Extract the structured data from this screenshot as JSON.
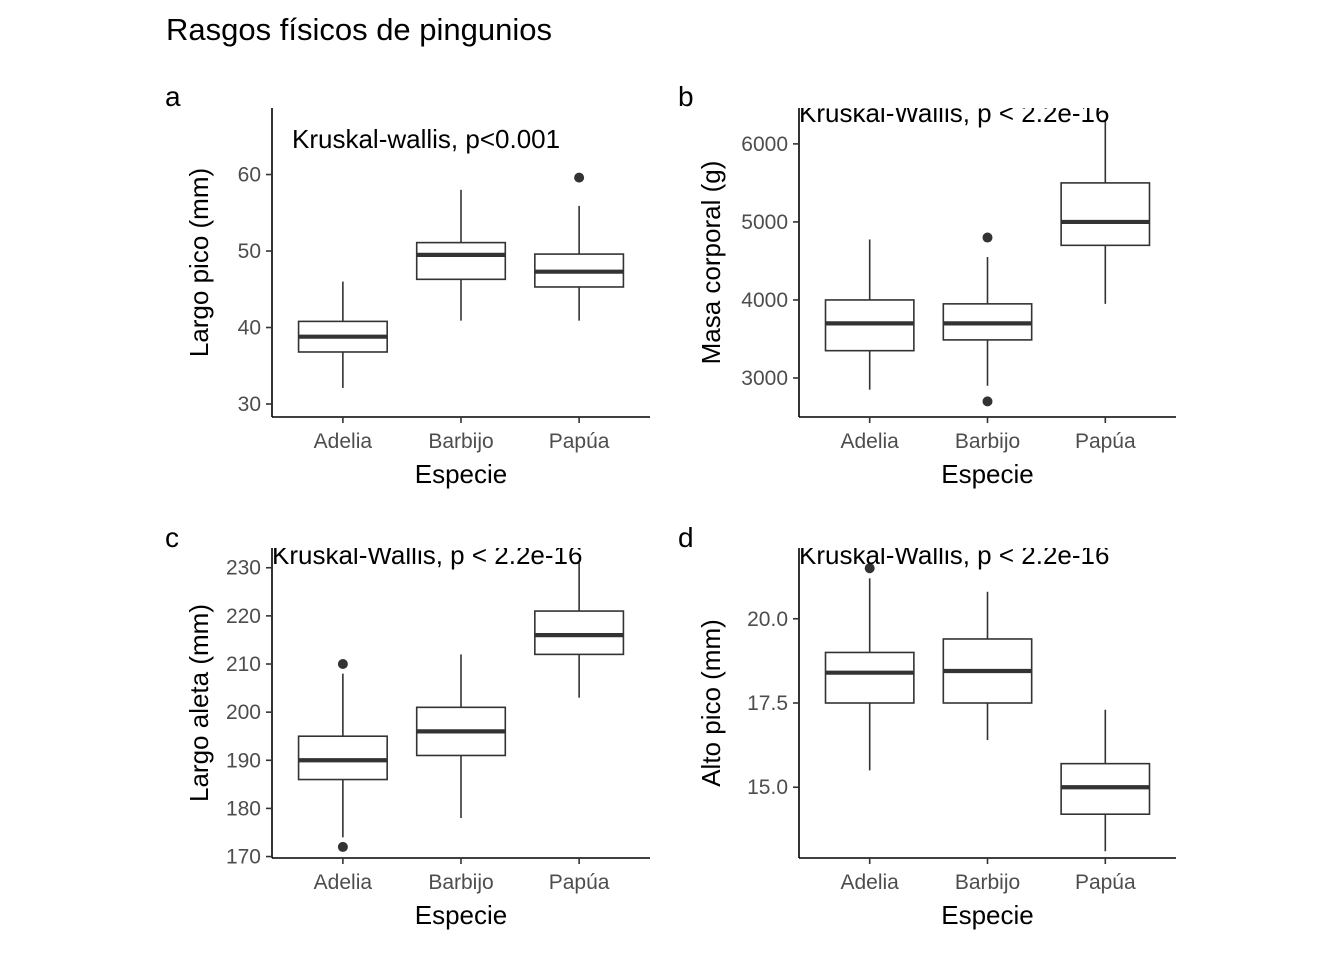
{
  "figure": {
    "title": "Rasgos físicos de pingunios"
  },
  "chart_data": [
    {
      "type": "box",
      "tag": "a",
      "annotation": "Kruskal-wallis, p<0.001",
      "xlabel": "Especie",
      "ylabel": "Largo pico (mm)",
      "ylim": [
        28.3,
        68.7
      ],
      "yticks": [
        30,
        40,
        50,
        60
      ],
      "ytick_labels": [
        "30",
        "40",
        "50",
        "60"
      ],
      "categories": [
        "Adelia",
        "Barbijo",
        "Papúa"
      ],
      "boxes": [
        {
          "whisker_low": 32.1,
          "q1": 36.8,
          "median": 38.8,
          "q3": 40.8,
          "whisker_high": 46.0,
          "outliers": []
        },
        {
          "whisker_low": 40.9,
          "q1": 46.3,
          "median": 49.5,
          "q3": 51.1,
          "whisker_high": 58.0,
          "outliers": []
        },
        {
          "whisker_low": 40.9,
          "q1": 45.3,
          "median": 47.3,
          "q3": 49.6,
          "whisker_high": 55.9,
          "outliers": [
            59.6
          ]
        }
      ]
    },
    {
      "type": "box",
      "tag": "b",
      "annotation": "Kruskal-Wallis, p < 2.2e-16",
      "xlabel": "Especie",
      "ylabel": "Masa corporal (g)",
      "ylim": [
        2500,
        6460
      ],
      "yticks": [
        3000,
        4000,
        5000,
        6000
      ],
      "ytick_labels": [
        "3000",
        "4000",
        "5000",
        "6000"
      ],
      "categories": [
        "Adelia",
        "Barbijo",
        "Papúa"
      ],
      "boxes": [
        {
          "whisker_low": 2850,
          "q1": 3350,
          "median": 3700,
          "q3": 4000,
          "whisker_high": 4775,
          "outliers": []
        },
        {
          "whisker_low": 2900,
          "q1": 3488,
          "median": 3700,
          "q3": 3950,
          "whisker_high": 4550,
          "outliers": [
            4800,
            2700
          ]
        },
        {
          "whisker_low": 3950,
          "q1": 4700,
          "median": 5000,
          "q3": 5500,
          "whisker_high": 6300,
          "outliers": []
        }
      ]
    },
    {
      "type": "box",
      "tag": "c",
      "annotation": "Kruskal-Wallis, p < 2.2e-16",
      "xlabel": "Especie",
      "ylabel": "Largo aleta (mm)",
      "ylim": [
        169.7,
        234.1
      ],
      "yticks": [
        170,
        180,
        190,
        200,
        210,
        220,
        230
      ],
      "ytick_labels": [
        "170",
        "180",
        "190",
        "200",
        "210",
        "220",
        "230"
      ],
      "categories": [
        "Adelia",
        "Barbijo",
        "Papúa"
      ],
      "boxes": [
        {
          "whisker_low": 174,
          "q1": 186,
          "median": 190,
          "q3": 195,
          "whisker_high": 208,
          "outliers": [
            210,
            172
          ]
        },
        {
          "whisker_low": 178,
          "q1": 191,
          "median": 196,
          "q3": 201,
          "whisker_high": 212,
          "outliers": []
        },
        {
          "whisker_low": 203,
          "q1": 212,
          "median": 216,
          "q3": 221,
          "whisker_high": 231,
          "outliers": []
        }
      ]
    },
    {
      "type": "box",
      "tag": "d",
      "annotation": "Kruskal-Wallis, p < 2.2e-16",
      "xlabel": "Especie",
      "ylabel": "Alto pico (mm)",
      "ylim": [
        12.9,
        22.1
      ],
      "yticks": [
        15.0,
        17.5,
        20.0
      ],
      "ytick_labels": [
        "15.0",
        "17.5",
        "20.0"
      ],
      "categories": [
        "Adelia",
        "Barbijo",
        "Papúa"
      ],
      "boxes": [
        {
          "whisker_low": 15.5,
          "q1": 17.5,
          "median": 18.4,
          "q3": 19.0,
          "whisker_high": 21.2,
          "outliers": [
            21.5
          ]
        },
        {
          "whisker_low": 16.4,
          "q1": 17.5,
          "median": 18.45,
          "q3": 19.4,
          "whisker_high": 20.8,
          "outliers": []
        },
        {
          "whisker_low": 13.1,
          "q1": 14.2,
          "median": 15.0,
          "q3": 15.7,
          "whisker_high": 17.3,
          "outliers": []
        }
      ]
    }
  ]
}
